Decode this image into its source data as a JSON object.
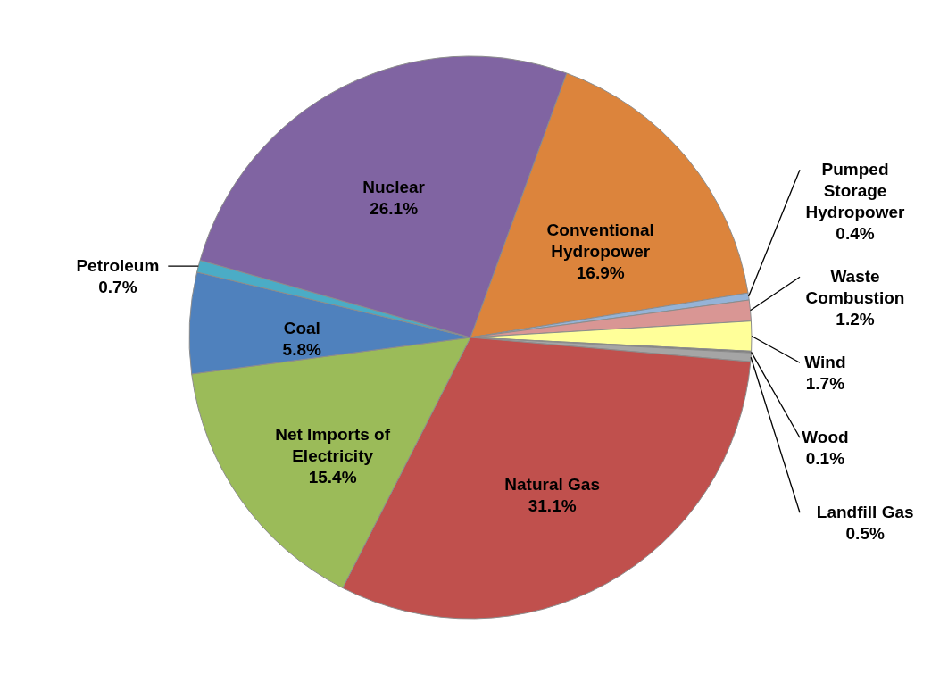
{
  "chart_data": {
    "type": "pie",
    "categories": [
      "Conventional Hydropower",
      "Pumped Storage Hydropower",
      "Waste Combustion",
      "Wind",
      "Wood",
      "Landfill Gas",
      "Natural Gas",
      "Net Imports of Electricity",
      "Coal",
      "Petroleum",
      "Nuclear"
    ],
    "values": [
      16.9,
      0.4,
      1.2,
      1.7,
      0.1,
      0.5,
      31.1,
      15.4,
      5.8,
      0.7,
      26.1
    ],
    "colors": [
      "#dc843c",
      "#95b3d7",
      "#d99694",
      "#ffff99",
      "#7f7f7f",
      "#a5a5a5",
      "#c0504d",
      "#9bbb59",
      "#4f81bd",
      "#4bacc6",
      "#8064a2"
    ],
    "value_labels": [
      "16.9%",
      "0.4%",
      "1.2%",
      "1.7%",
      "0.1%",
      "0.5%",
      "31.1%",
      "15.4%",
      "5.8%",
      "0.7%",
      "26.1%"
    ]
  }
}
